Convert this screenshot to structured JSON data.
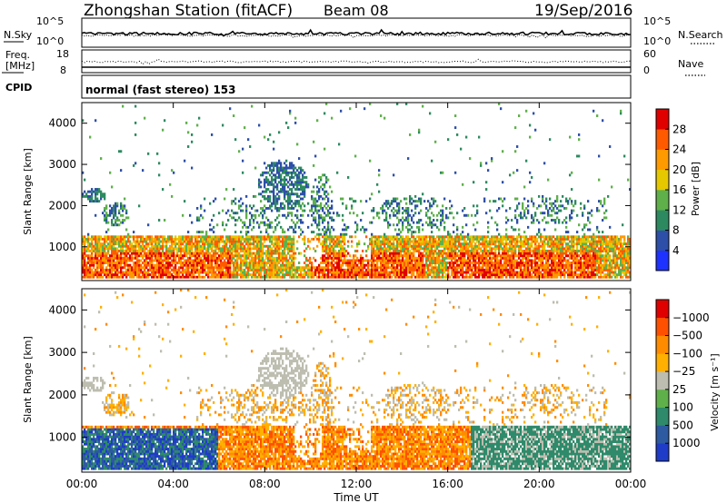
{
  "header": {
    "station": "Zhongshan Station (fitACF)",
    "beam": "Beam 08",
    "date": "19/Sep/2016"
  },
  "strips": {
    "nsky": {
      "label": "N.Sky",
      "ticks": [
        "10^5",
        "10^0"
      ]
    },
    "nsearch": {
      "label": "N.Search",
      "ticks": [
        "10^5",
        "10^0"
      ]
    },
    "freq": {
      "label_top": "Freq.",
      "label_bottom": "[MHz]",
      "ticks": [
        "18",
        "8"
      ]
    },
    "nave": {
      "label": "Nave",
      "ticks": [
        "60",
        "0"
      ]
    },
    "cpid": {
      "label": "CPID",
      "text": "normal (fast stereo) 153"
    }
  },
  "chart_data": [
    {
      "type": "heatmap",
      "panel": "power",
      "xlabel": "",
      "ylabel": "Slant Range [km]",
      "xlim": [
        0,
        24
      ],
      "ylim": [
        180,
        4500
      ],
      "yticks": [
        1000,
        2000,
        3000,
        4000
      ],
      "colorbar": {
        "label": "Power [dB]",
        "ticks": [
          "4",
          "8",
          "12",
          "16",
          "20",
          "24",
          "28"
        ],
        "colors": [
          "#1e32ff",
          "#2d4fa8",
          "#2d8a60",
          "#5fb04a",
          "#e5c800",
          "#ff9a00",
          "#ff5a00",
          "#e00000"
        ]
      }
    },
    {
      "type": "heatmap",
      "panel": "velocity",
      "xlabel": "Time UT",
      "ylabel": "Slant Range [km]",
      "xlim": [
        0,
        24
      ],
      "ylim": [
        180,
        4500
      ],
      "yticks": [
        1000,
        2000,
        3000,
        4000
      ],
      "xticks": [
        "00:00",
        "04:00",
        "08:00",
        "12:00",
        "16:00",
        "20:00",
        "00:00"
      ],
      "colorbar": {
        "label": "Velocity [m s⁻¹]",
        "ticks": [
          "1000",
          "500",
          "100",
          "25",
          "−25",
          "−100",
          "−500",
          "−1000"
        ],
        "colors": [
          "#1e3cc8",
          "#2d5aa0",
          "#2e8a6a",
          "#5fb04a",
          "#bdbdb0",
          "#ffb000",
          "#ff8c00",
          "#ff5000",
          "#e00000"
        ]
      }
    }
  ]
}
